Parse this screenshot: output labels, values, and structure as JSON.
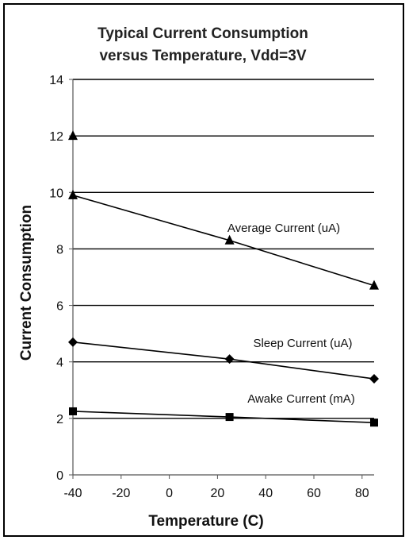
{
  "chart_data": {
    "type": "line",
    "title_lines": [
      "Typical Current Consumption",
      "versus Temperature, Vdd=3V"
    ],
    "xlabel": "Temperature (C)",
    "ylabel": "Current Consumption",
    "xlim": [
      -40,
      85
    ],
    "ylim": [
      0,
      14
    ],
    "xticks": [
      -40,
      -20,
      0,
      20,
      40,
      60,
      80
    ],
    "yticks": [
      0,
      2,
      4,
      6,
      8,
      10,
      12,
      14
    ],
    "grid": "horizontal",
    "series": [
      {
        "name": "Average Current (uA)",
        "marker": "triangle",
        "x": [
          -40,
          25,
          85
        ],
        "y": [
          9.9,
          8.3,
          6.7
        ],
        "extra_points": [
          {
            "x": -40,
            "y": 12.0
          }
        ]
      },
      {
        "name": "Sleep Current (uA)",
        "marker": "diamond",
        "x": [
          -40,
          25,
          85
        ],
        "y": [
          4.7,
          4.1,
          3.4
        ]
      },
      {
        "name": "Awake Current (mA)",
        "marker": "square",
        "x": [
          -40,
          25,
          85
        ],
        "y": [
          2.25,
          2.05,
          1.85
        ]
      }
    ]
  }
}
